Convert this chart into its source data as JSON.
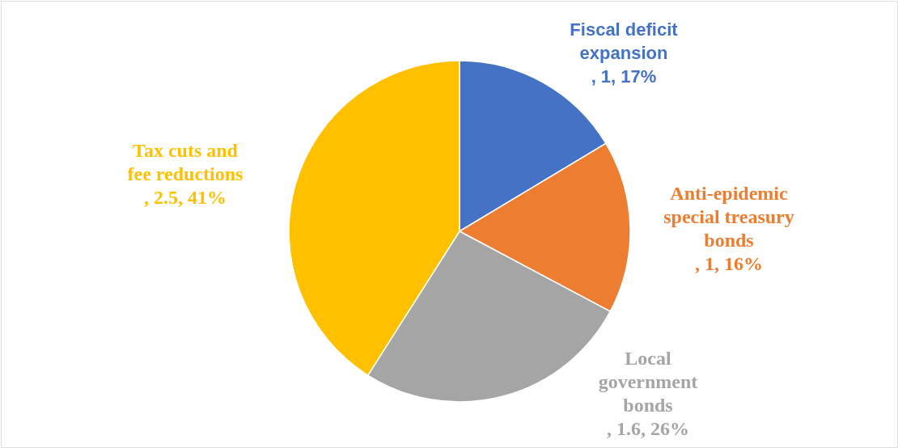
{
  "chart_data": {
    "type": "pie",
    "categories": [
      "Fiscal deficit expansion",
      "Anti-epidemic special treasury bonds",
      "Local government bonds",
      "Tax cuts and fee reductions"
    ],
    "values": [
      1,
      1,
      1.6,
      2.5
    ],
    "value_labels": [
      ", 1, 17%",
      ", 1, 16%",
      ", 1.6, 26%",
      ", 2.5, 41%"
    ],
    "colors": [
      "#4472c4",
      "#ed7d31",
      "#a5a5a5",
      "#ffc000"
    ]
  }
}
